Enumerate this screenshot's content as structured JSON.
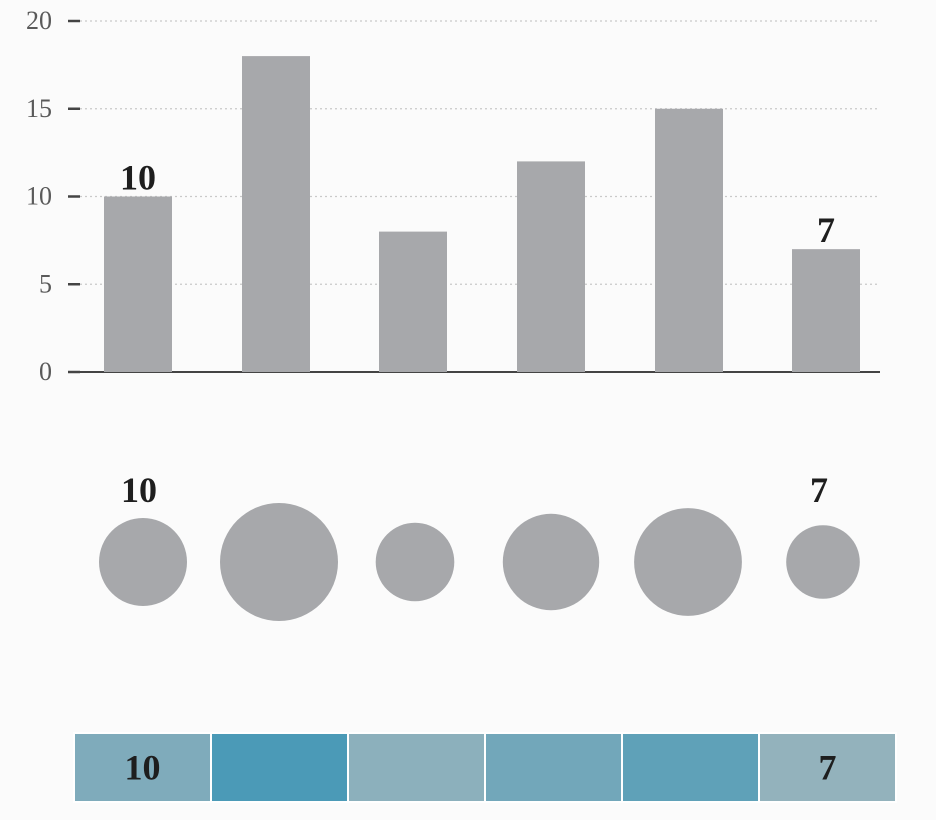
{
  "colors": {
    "bar": "#a7a8ab",
    "bubble": "#a7a8ab",
    "grid": "#c9c9c9",
    "axis": "#444444",
    "label": "#1e1e1e",
    "tick_label": "#5a5a5a",
    "heat_low": "#93b2bc",
    "heat_high": "#4b9ab7"
  },
  "chart_data": [
    {
      "type": "bar",
      "values": [
        10,
        18,
        8,
        12,
        15,
        7
      ],
      "ylim": [
        0,
        20
      ],
      "yticks": [
        "0",
        "5",
        "10",
        "15",
        "20"
      ],
      "grid": true,
      "data_labels": [
        "10",
        "",
        "",
        "",
        "",
        "7"
      ]
    },
    {
      "type": "scatter",
      "encoding": "bubble size",
      "values": [
        10,
        18,
        8,
        12,
        15,
        7
      ],
      "data_labels": [
        "10",
        "",
        "",
        "",
        "",
        "7"
      ]
    },
    {
      "type": "heatmap",
      "encoding": "color intensity",
      "values": [
        10,
        18,
        8,
        12,
        15,
        7
      ],
      "data_labels": [
        "10",
        "",
        "",
        "",
        "",
        "7"
      ]
    }
  ]
}
